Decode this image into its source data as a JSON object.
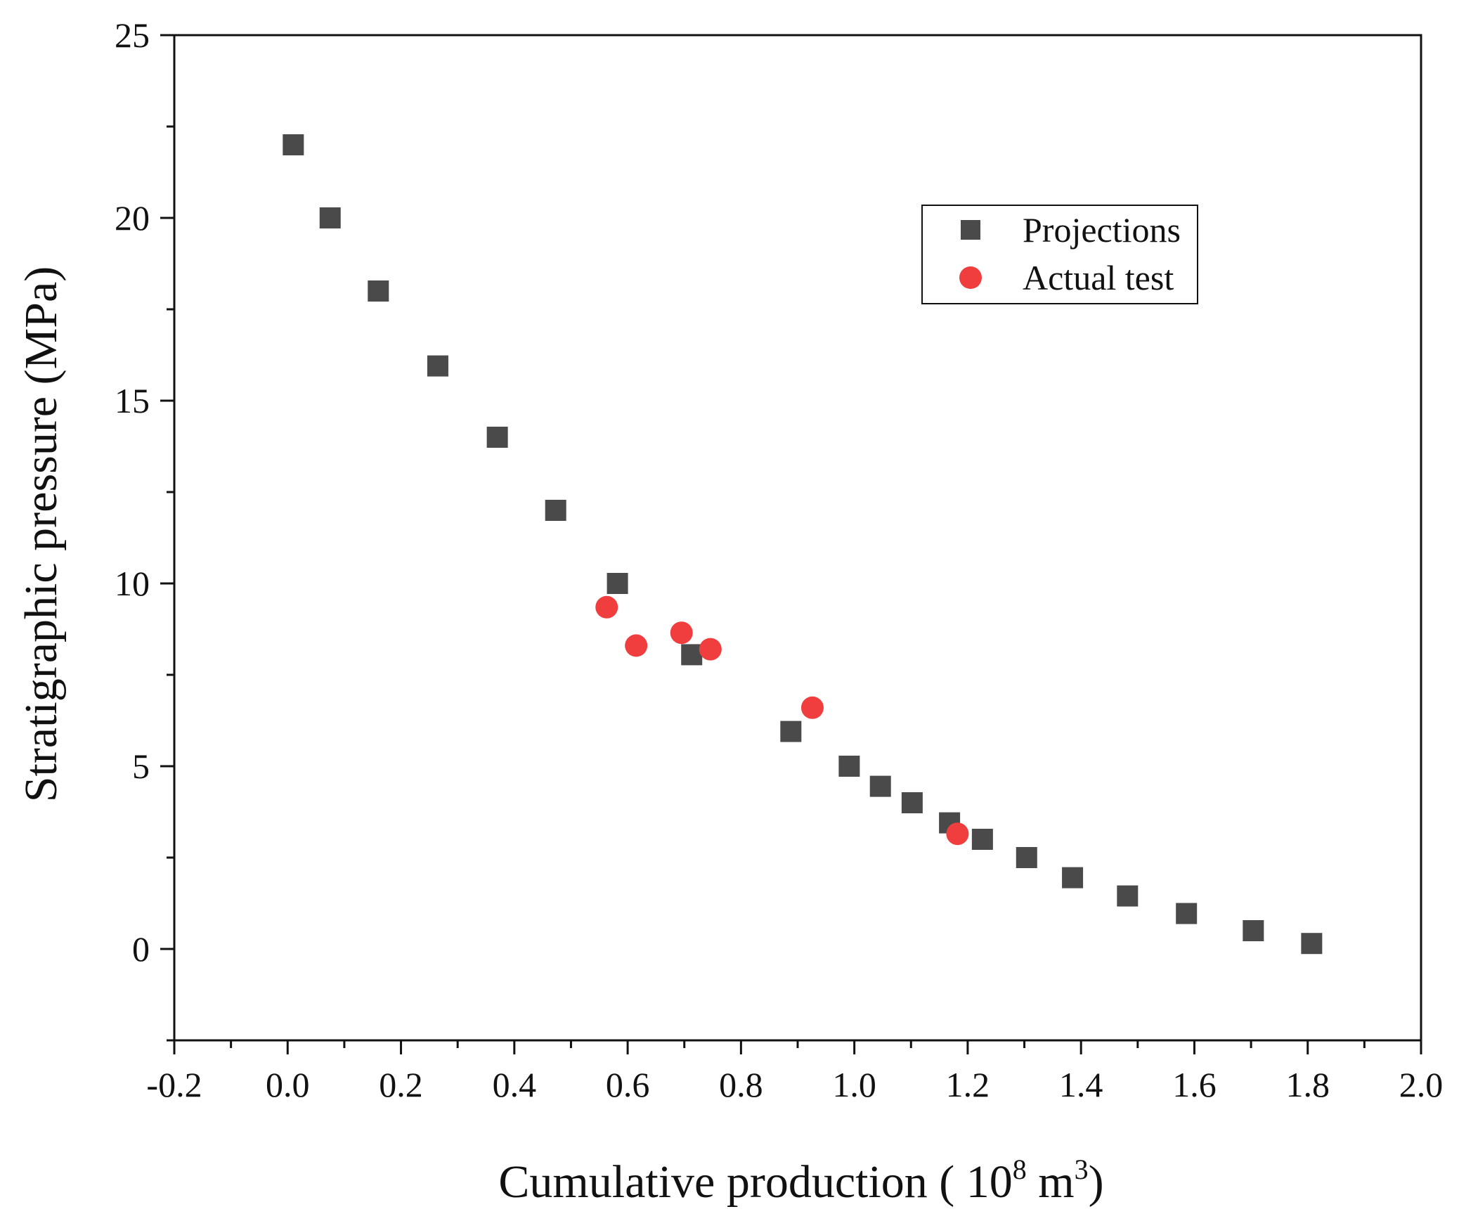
{
  "chart_data": {
    "type": "scatter",
    "title": "",
    "xlabel": {
      "prefix": "Cumulative production ( 10",
      "sup1": "8",
      "middle": " m",
      "sup2": "3",
      "suffix": ")"
    },
    "ylabel": "Stratigraphic pressure (MPa)",
    "xlim": [
      -0.2,
      2.0
    ],
    "ylim": [
      -2.5,
      25
    ],
    "xticks": [
      -0.2,
      0.0,
      0.2,
      0.4,
      0.6,
      0.8,
      1.0,
      1.2,
      1.4,
      1.6,
      1.8,
      2.0
    ],
    "xtick_labels": [
      "-0.2",
      "0.0",
      "0.2",
      "0.4",
      "0.6",
      "0.8",
      "1.0",
      "1.2",
      "1.4",
      "1.6",
      "1.8",
      "2.0"
    ],
    "yticks": [
      0,
      5,
      10,
      15,
      20,
      25
    ],
    "ytick_labels": [
      "0",
      "5",
      "10",
      "15",
      "20",
      "25"
    ],
    "grid": false,
    "legend_position": "top-right",
    "series": [
      {
        "name": "Projections",
        "marker": "square",
        "color": "#4a4a4a",
        "points": [
          {
            "x": 0.01,
            "y": 22.0
          },
          {
            "x": 0.075,
            "y": 20.0
          },
          {
            "x": 0.16,
            "y": 18.0
          },
          {
            "x": 0.265,
            "y": 15.95
          },
          {
            "x": 0.37,
            "y": 14.0
          },
          {
            "x": 0.473,
            "y": 12.0
          },
          {
            "x": 0.582,
            "y": 10.0
          },
          {
            "x": 0.713,
            "y": 8.05
          },
          {
            "x": 0.888,
            "y": 5.95
          },
          {
            "x": 0.991,
            "y": 5.0
          },
          {
            "x": 1.046,
            "y": 4.45
          },
          {
            "x": 1.102,
            "y": 4.0
          },
          {
            "x": 1.168,
            "y": 3.45
          },
          {
            "x": 1.226,
            "y": 3.0
          },
          {
            "x": 1.304,
            "y": 2.5
          },
          {
            "x": 1.385,
            "y": 1.95
          },
          {
            "x": 1.482,
            "y": 1.45
          },
          {
            "x": 1.586,
            "y": 0.97
          },
          {
            "x": 1.704,
            "y": 0.5
          },
          {
            "x": 1.807,
            "y": 0.15
          }
        ]
      },
      {
        "name": "Actual test",
        "marker": "circle",
        "color": "#f03e3e",
        "points": [
          {
            "x": 0.563,
            "y": 9.35
          },
          {
            "x": 0.615,
            "y": 8.3
          },
          {
            "x": 0.695,
            "y": 8.65
          },
          {
            "x": 0.746,
            "y": 8.2
          },
          {
            "x": 0.926,
            "y": 6.6
          },
          {
            "x": 1.182,
            "y": 3.15
          }
        ]
      }
    ]
  }
}
